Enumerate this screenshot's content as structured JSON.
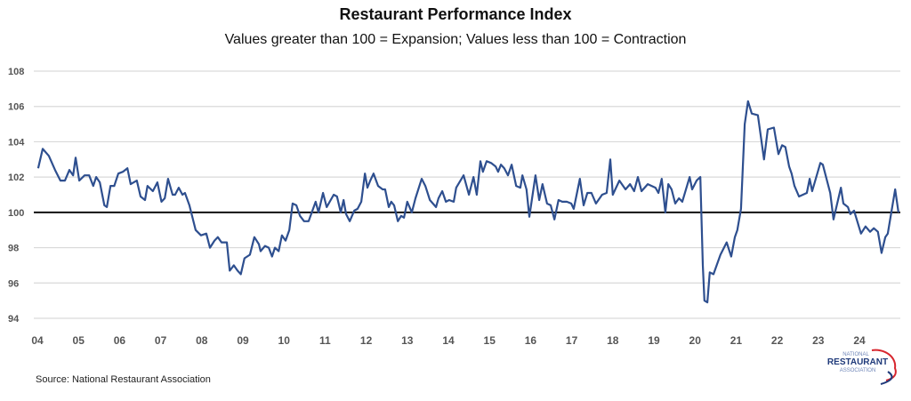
{
  "chart_data": {
    "type": "line",
    "title": "Restaurant Performance Index",
    "subtitle": "Values greater than 100 = Expansion; Values less than 100 = Contraction",
    "xlabel": "",
    "ylabel": "",
    "ylim": [
      94,
      108
    ],
    "yticks": [
      "94",
      "96",
      "98",
      "100",
      "102",
      "104",
      "106",
      "108"
    ],
    "xlim": [
      2004,
      2025
    ],
    "xticks": [
      "04",
      "05",
      "06",
      "07",
      "08",
      "09",
      "10",
      "11",
      "12",
      "13",
      "14",
      "15",
      "16",
      "17",
      "18",
      "19",
      "20",
      "21",
      "22",
      "23",
      "24"
    ],
    "grid": true,
    "reference_line": 100,
    "line_color": "#2e4f8f",
    "series": [
      {
        "x": [
          2004.02,
          2004.13,
          2004.28,
          2004.43,
          2004.56,
          2004.67,
          2004.78,
          2004.87,
          2004.93,
          2005.02,
          2005.15,
          2005.26,
          2005.36,
          2005.43,
          2005.52,
          2005.63,
          2005.69,
          2005.78,
          2005.87,
          2005.97,
          2006.08,
          2006.19,
          2006.27,
          2006.42,
          2006.51,
          2006.62,
          2006.68,
          2006.81,
          2006.92,
          2007.02,
          2007.1,
          2007.18,
          2007.29,
          2007.35,
          2007.44,
          2007.53,
          2007.59,
          2007.7,
          2007.85,
          2007.98,
          2008.11,
          2008.2,
          2008.31,
          2008.39,
          2008.48,
          2008.61,
          2008.68,
          2008.78,
          2008.87,
          2008.95,
          2009.04,
          2009.17,
          2009.28,
          2009.39,
          2009.43,
          2009.54,
          2009.63,
          2009.71,
          2009.78,
          2009.87,
          2009.95,
          2010.04,
          2010.13,
          2010.21,
          2010.3,
          2010.39,
          2010.49,
          2010.6,
          2010.77,
          2010.84,
          2010.95,
          2011.04,
          2011.21,
          2011.29,
          2011.38,
          2011.45,
          2011.51,
          2011.6,
          2011.71,
          2011.79,
          2011.88,
          2011.97,
          2012.03,
          2012.1,
          2012.18,
          2012.29,
          2012.4,
          2012.46,
          2012.55,
          2012.61,
          2012.68,
          2012.77,
          2012.85,
          2012.92,
          2013.0,
          2013.11,
          2013.2,
          2013.35,
          2013.44,
          2013.55,
          2013.7,
          2013.76,
          2013.85,
          2013.94,
          2014.02,
          2014.13,
          2014.19,
          2014.37,
          2014.5,
          2014.61,
          2014.69,
          2014.78,
          2014.84,
          2014.93,
          2015.04,
          2015.15,
          2015.21,
          2015.28,
          2015.36,
          2015.45,
          2015.54,
          2015.65,
          2015.75,
          2015.8,
          2015.9,
          2015.97,
          2016.12,
          2016.21,
          2016.29,
          2016.4,
          2016.49,
          2016.58,
          2016.68,
          2016.77,
          2016.88,
          2016.99,
          2017.05,
          2017.2,
          2017.29,
          2017.38,
          2017.48,
          2017.59,
          2017.74,
          2017.85,
          2017.94,
          2018.0,
          2018.16,
          2018.31,
          2018.42,
          2018.52,
          2018.61,
          2018.7,
          2018.85,
          2019.04,
          2019.11,
          2019.19,
          2019.28,
          2019.35,
          2019.43,
          2019.52,
          2019.61,
          2019.69,
          2019.87,
          2019.93,
          2020.04,
          2020.13,
          2020.19,
          2020.23,
          2020.3,
          2020.36,
          2020.45,
          2020.62,
          2020.77,
          2020.88,
          2020.97,
          2021.03,
          2021.12,
          2021.21,
          2021.29,
          2021.38,
          2021.53,
          2021.68,
          2021.77,
          2021.92,
          2022.03,
          2022.12,
          2022.2,
          2022.29,
          2022.35,
          2022.42,
          2022.53,
          2022.72,
          2022.79,
          2022.85,
          2023.05,
          2023.11,
          2023.29,
          2023.37,
          2023.55,
          2023.61,
          2023.72,
          2023.78,
          2023.87,
          2024.04,
          2024.15,
          2024.26,
          2024.35,
          2024.45,
          2024.54,
          2024.63,
          2024.69,
          2024.87,
          2024.95
        ],
        "y": [
          102.5,
          103.6,
          103.2,
          102.4,
          101.8,
          101.8,
          102.4,
          102.1,
          103.1,
          101.8,
          102.1,
          102.1,
          101.5,
          102.0,
          101.7,
          100.4,
          100.3,
          101.5,
          101.5,
          102.2,
          102.3,
          102.5,
          101.6,
          101.8,
          100.9,
          100.7,
          101.5,
          101.2,
          101.7,
          100.6,
          100.8,
          101.9,
          101.0,
          101.0,
          101.4,
          101.0,
          101.1,
          100.4,
          99.0,
          98.7,
          98.8,
          98.0,
          98.4,
          98.6,
          98.3,
          98.3,
          96.7,
          97.0,
          96.7,
          96.5,
          97.4,
          97.6,
          98.6,
          98.2,
          97.8,
          98.1,
          98.0,
          97.5,
          98.0,
          97.8,
          98.7,
          98.4,
          99.0,
          100.5,
          100.4,
          99.8,
          99.5,
          99.5,
          100.6,
          100.0,
          101.1,
          100.3,
          101.0,
          100.9,
          100.0,
          100.7,
          99.9,
          99.5,
          100.1,
          100.2,
          100.6,
          102.2,
          101.4,
          101.8,
          102.2,
          101.5,
          101.3,
          101.3,
          100.3,
          100.6,
          100.4,
          99.5,
          99.8,
          99.7,
          100.6,
          100.0,
          100.8,
          101.9,
          101.5,
          100.7,
          100.3,
          100.8,
          101.2,
          100.6,
          100.7,
          100.6,
          101.4,
          102.1,
          101.0,
          102.0,
          101.0,
          102.9,
          102.3,
          102.9,
          102.8,
          102.6,
          102.3,
          102.7,
          102.5,
          102.1,
          102.7,
          101.5,
          101.4,
          102.1,
          101.3,
          99.75,
          102.1,
          100.7,
          101.6,
          100.5,
          100.4,
          99.6,
          100.7,
          100.6,
          100.6,
          100.5,
          100.2,
          101.9,
          100.4,
          101.1,
          101.1,
          100.5,
          101.0,
          101.1,
          103.0,
          101.0,
          101.8,
          101.3,
          101.6,
          101.2,
          102.0,
          101.2,
          101.6,
          101.4,
          101.1,
          101.9,
          100.0,
          101.6,
          101.3,
          100.5,
          100.8,
          100.6,
          102.0,
          101.3,
          101.8,
          102.0,
          97.0,
          95.0,
          94.9,
          96.6,
          96.5,
          97.6,
          98.3,
          97.5,
          98.6,
          99.0,
          100.2,
          105.0,
          106.3,
          105.6,
          105.5,
          103.0,
          104.7,
          104.8,
          103.3,
          103.8,
          103.7,
          102.6,
          102.2,
          101.5,
          100.9,
          101.1,
          101.9,
          101.2,
          102.8,
          102.7,
          101.1,
          99.6,
          101.4,
          100.5,
          100.3,
          99.9,
          100.1,
          98.8,
          99.2,
          98.9,
          99.1,
          98.9,
          97.7,
          98.6,
          98.8,
          101.3,
          100.0
        ]
      }
    ]
  },
  "source": "Source: National Restaurant Association",
  "logo": {
    "line1": "NATIONAL",
    "line2": "RESTAURANT",
    "line3": "ASSOCIATION"
  }
}
